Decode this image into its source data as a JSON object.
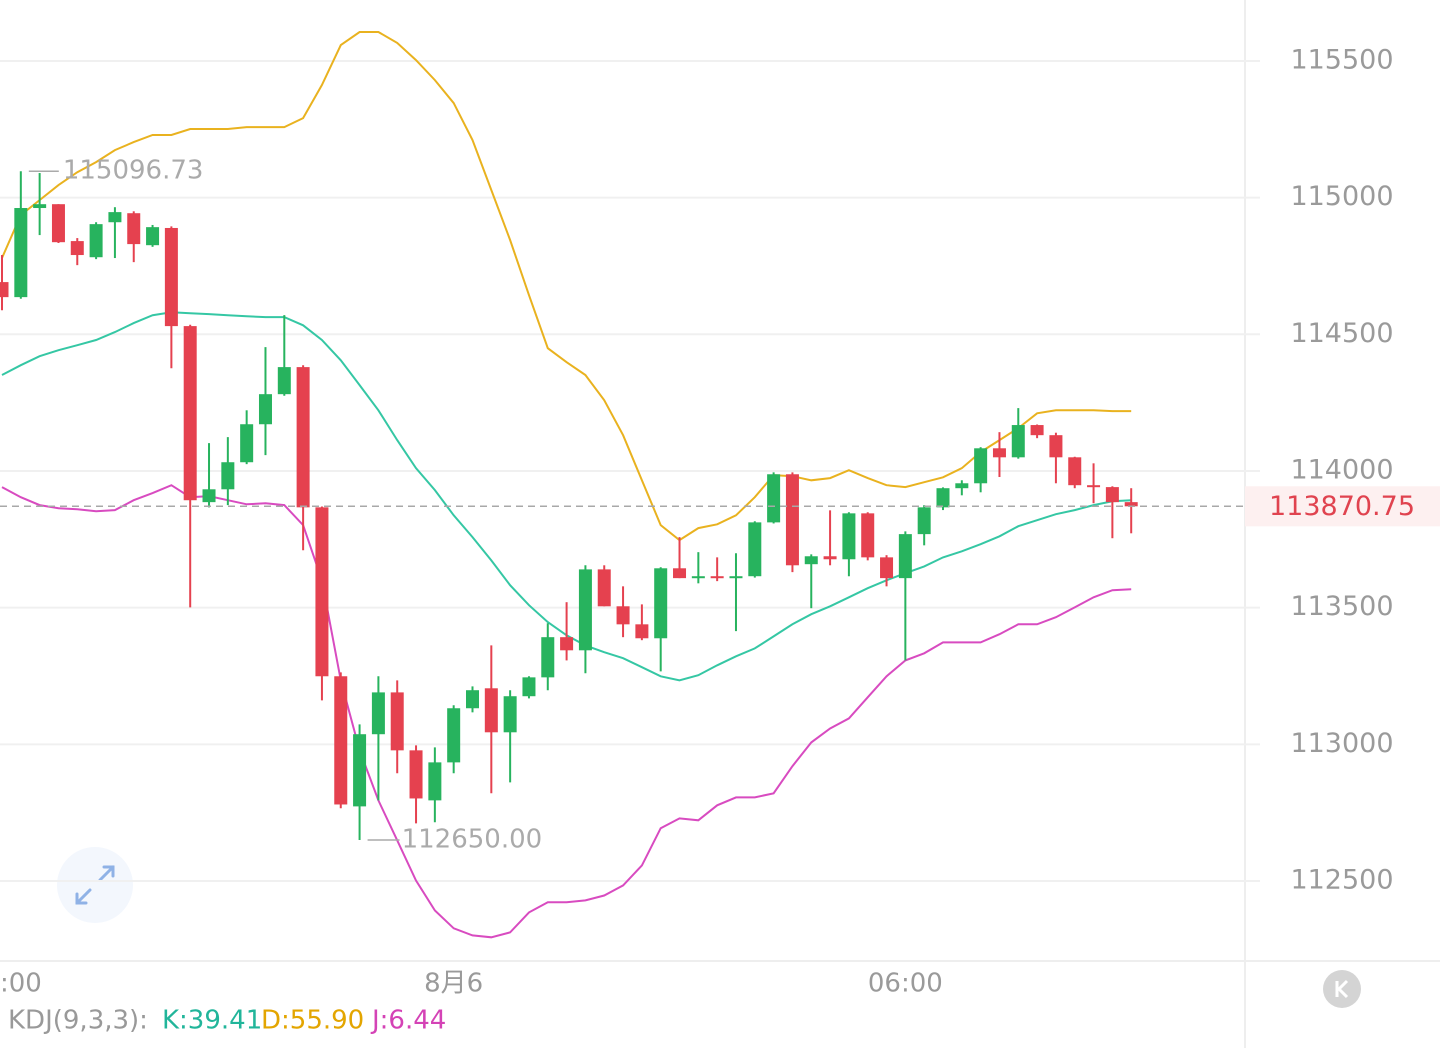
{
  "chart_data": {
    "type": "candlestick",
    "categories": [
      ":00",
      null,
      null,
      null,
      null,
      null,
      null,
      null,
      null,
      null,
      null,
      null,
      null,
      null,
      null,
      null,
      null,
      null,
      null,
      null,
      null,
      null,
      null,
      null,
      "8月6",
      null,
      null,
      null,
      null,
      null,
      null,
      null,
      null,
      null,
      null,
      null,
      null,
      null,
      null,
      null,
      null,
      null,
      null,
      null,
      null,
      null,
      null,
      null,
      "06:00",
      null,
      null,
      null,
      null,
      null,
      null,
      null,
      null,
      null,
      null,
      null,
      null
    ],
    "open": [
      114691,
      114636,
      114962,
      114976,
      114841,
      114782,
      114910,
      114943,
      114826,
      114889,
      114530,
      113886,
      113933,
      114032,
      114171,
      114281,
      114380,
      113867,
      113249,
      112773,
      113037,
      113190,
      112978,
      112795,
      112934,
      113132,
      113205,
      113044,
      113176,
      113245,
      113392,
      113344,
      113640,
      113505,
      113439,
      113388,
      113644,
      113608,
      113615,
      113608,
      113615,
      113812,
      113988,
      113659,
      113688,
      113677,
      113845,
      113684,
      113608,
      113769,
      113867,
      113937,
      113955,
      114083,
      114050,
      114168,
      114131,
      114050,
      113948,
      113941,
      113886
    ],
    "high": [
      114790,
      115096.73,
      115090,
      114976,
      114852,
      114910,
      114965,
      114950,
      114900,
      114895,
      114535,
      114102,
      114124,
      114222,
      114453,
      114570,
      114387,
      113870,
      113263,
      113073,
      113249,
      113234,
      112996,
      112989,
      113143,
      113212,
      113362,
      113198,
      113249,
      113443,
      113520,
      113655,
      113655,
      113578,
      113512,
      113648,
      113758,
      113703,
      113684,
      113699,
      113816,
      113995,
      113995,
      113695,
      113856,
      113849,
      113849,
      113692,
      113779,
      113875,
      113940,
      113966,
      114087,
      114142,
      114230,
      114170,
      114140,
      114052,
      114028,
      113944,
      113937
    ],
    "low": [
      114588,
      114630,
      114863,
      114834,
      114753,
      114775,
      114779,
      114764,
      114820,
      114376,
      113501,
      113867,
      113875,
      114025,
      114058,
      114275,
      113710,
      113161,
      112766,
      112650,
      112795,
      112894,
      112711,
      112715,
      112894,
      113117,
      112821,
      112861,
      113168,
      113198,
      113307,
      113260,
      113505,
      113392,
      113381,
      113267,
      113608,
      113589,
      113597,
      113414,
      113610,
      113808,
      113630,
      113498,
      113655,
      113615,
      113673,
      113578,
      113307,
      113728,
      113857,
      113911,
      113922,
      113978,
      114045,
      114120,
      113955,
      113937,
      113882,
      113754,
      113772
    ],
    "close": [
      114636,
      114962,
      114976,
      114837,
      114790,
      114903,
      114947,
      114830,
      114892,
      114530,
      113893,
      113933,
      114032,
      114171,
      114281,
      114380,
      113867,
      113249,
      112780,
      113037,
      113190,
      112978,
      112802,
      112934,
      113132,
      113198,
      113044,
      113176,
      113245,
      113392,
      113344,
      113640,
      113505,
      113439,
      113388,
      113644,
      113608,
      113615,
      113608,
      113615,
      113812,
      113988,
      113655,
      113688,
      113677,
      113845,
      113684,
      113608,
      113769,
      113867,
      113937,
      113955,
      114083,
      114050,
      114168,
      114131,
      114050,
      113948,
      113941,
      113886,
      113870.75
    ],
    "up_color": "#27b35e",
    "down_color": "#e5414f",
    "bands": [
      {
        "color": "#e9b21f",
        "values": [
          114779,
          114936,
          114991,
          115046,
          115093,
          115130,
          115174,
          115203,
          115229,
          115229,
          115251,
          115251,
          115251,
          115258,
          115258,
          115258,
          115291,
          115412,
          115558,
          115606,
          115606,
          115566,
          115503,
          115430,
          115346,
          115211,
          115028,
          114845,
          114643,
          114449,
          114398,
          114351,
          114259,
          114131,
          113966,
          113802,
          113747,
          113791,
          113805,
          113838,
          113904,
          113985,
          113981,
          113966,
          113974,
          114003,
          113974,
          113948,
          113941,
          113959,
          113977,
          114010,
          114069,
          114113,
          114157,
          114211,
          114222,
          114222,
          114222,
          114219,
          114219
        ]
      },
      {
        "color": "#35c7a4",
        "values": [
          114351,
          114387,
          114420,
          114442,
          114460,
          114479,
          114508,
          114541,
          114570,
          114581,
          114577,
          114574,
          114570,
          114566,
          114563,
          114563,
          114533,
          114479,
          114405,
          114314,
          114222,
          114113,
          114010,
          113930,
          113838,
          113758,
          113673,
          113582,
          113509,
          113447,
          113399,
          113362,
          113337,
          113315,
          113282,
          113249,
          113234,
          113253,
          113289,
          113322,
          113351,
          113395,
          113439,
          113476,
          113505,
          113538,
          113571,
          113600,
          113626,
          113651,
          113684,
          113706,
          113732,
          113761,
          113798,
          113820,
          113842,
          113857,
          113875,
          113889,
          113893
        ]
      },
      {
        "color": "#d84bc0",
        "values": [
          113941,
          113904,
          113875,
          113864,
          113860,
          113853,
          113857,
          113893,
          113919,
          113948,
          113904,
          113908,
          113893,
          113878,
          113882,
          113875,
          113802,
          113600,
          113234,
          112978,
          112795,
          112649,
          112502,
          112392,
          112327,
          112301,
          112294,
          112312,
          112385,
          112422,
          112422,
          112429,
          112447,
          112484,
          112557,
          112693,
          112729,
          112722,
          112777,
          112806,
          112806,
          112821,
          112920,
          113007,
          113058,
          113095,
          113172,
          113249,
          113307,
          113333,
          113373,
          113373,
          113373,
          113403,
          113439,
          113439,
          113465,
          113501,
          113538,
          113564,
          113567
        ]
      }
    ],
    "high_mark": 115096.73,
    "low_mark": {
      "value": 112650,
      "label": "112650.00"
    },
    "last_price": 113870.75,
    "ylim": [
      112211,
      115723
    ],
    "yticks": [
      115500,
      115000,
      114500,
      114000,
      113500,
      113000,
      112500
    ],
    "grid": true
  },
  "indicator": {
    "name": "KDJ(9,3,3):",
    "items": [
      {
        "text": "K:39.41",
        "color": "#21b59a"
      },
      {
        "text": "D:55.90",
        "color": "#e3a500"
      },
      {
        "text": "J:6.44",
        "color": "#d443b6"
      }
    ]
  }
}
